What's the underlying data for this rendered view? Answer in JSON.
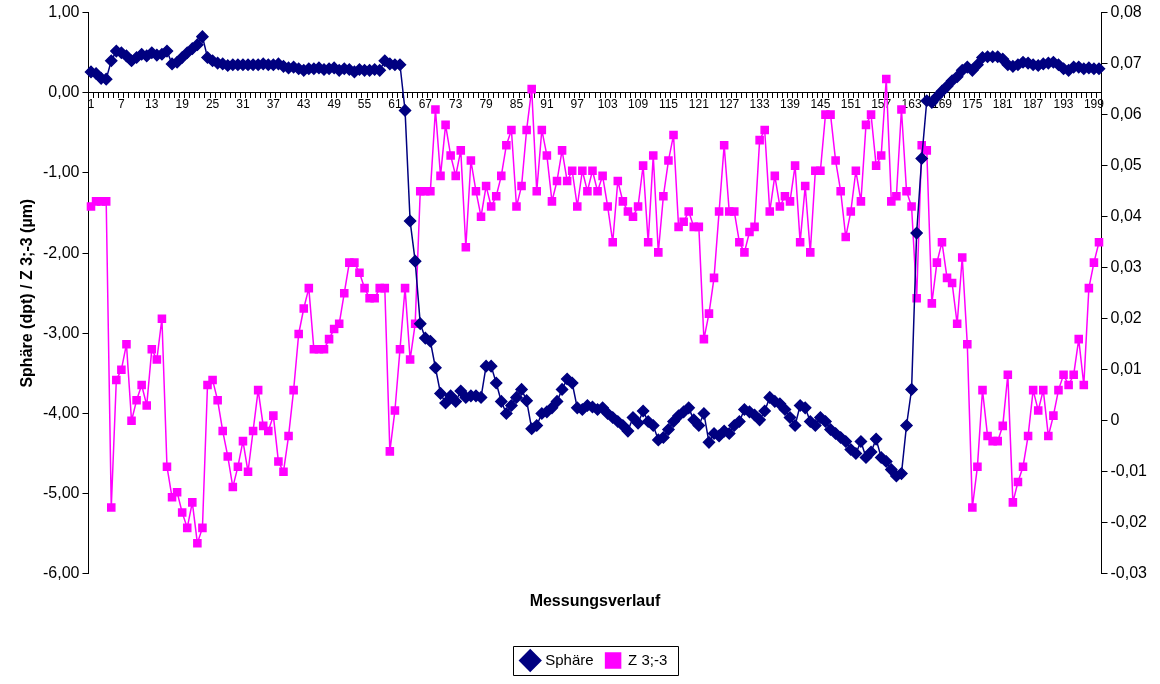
{
  "chart_data": {
    "type": "line",
    "xlabel": "Messungsverlauf",
    "ylabel": "Sphäre (dpt) / Z 3;-3 (µm)",
    "legend": "bottom",
    "grid": false,
    "categories": [
      "1",
      null,
      null,
      null,
      null,
      null,
      "7",
      null,
      null,
      null,
      null,
      null,
      "13",
      null,
      null,
      null,
      null,
      null,
      "19",
      null,
      null,
      null,
      null,
      null,
      "25",
      null,
      null,
      null,
      null,
      null,
      "31",
      null,
      null,
      null,
      null,
      null,
      "37",
      null,
      null,
      null,
      null,
      null,
      "43",
      null,
      null,
      null,
      null,
      null,
      "49",
      null,
      null,
      null,
      null,
      null,
      "55",
      null,
      null,
      null,
      null,
      null,
      "61",
      null,
      null,
      null,
      null,
      null,
      "67",
      null,
      null,
      null,
      null,
      null,
      "73",
      null,
      null,
      null,
      null,
      null,
      "79",
      null,
      null,
      null,
      null,
      null,
      "85",
      null,
      null,
      null,
      null,
      null,
      "91",
      null,
      null,
      null,
      null,
      null,
      "97",
      null,
      null,
      null,
      null,
      null,
      "103",
      null,
      null,
      null,
      null,
      null,
      "109",
      null,
      null,
      null,
      null,
      null,
      "115",
      null,
      null,
      null,
      null,
      null,
      "121",
      null,
      null,
      null,
      null,
      null,
      "127",
      null,
      null,
      null,
      null,
      null,
      "133",
      null,
      null,
      null,
      null,
      null,
      "139",
      null,
      null,
      null,
      null,
      null,
      "145",
      null,
      null,
      null,
      null,
      null,
      "151",
      null,
      null,
      null,
      null,
      null,
      "157",
      null,
      null,
      null,
      null,
      null,
      "163",
      null,
      null,
      null,
      null,
      null,
      "169",
      null,
      null,
      null,
      null,
      null,
      "175",
      null,
      null,
      null,
      null,
      null,
      "181",
      null,
      null,
      null,
      null,
      null,
      "187",
      null,
      null,
      null,
      null,
      null,
      "193",
      null,
      null,
      null,
      null,
      null,
      "199",
      null
    ],
    "ylim": [
      -6,
      1
    ],
    "yticks": [
      {
        "value": -6,
        "label": "-6,00"
      },
      {
        "value": -5,
        "label": "-5,00"
      },
      {
        "value": -4,
        "label": "-4,00"
      },
      {
        "value": -3,
        "label": "-3,00"
      },
      {
        "value": -2,
        "label": "-2,00"
      },
      {
        "value": -1,
        "label": "-1,00"
      },
      {
        "value": 0,
        "label": "0,00"
      },
      {
        "value": 1,
        "label": "1,00"
      }
    ],
    "y2lim": [
      -0.03,
      0.08
    ],
    "y2ticks": [
      {
        "value": -0.03,
        "label": "-0,03"
      },
      {
        "value": -0.02,
        "label": "-0,02"
      },
      {
        "value": -0.01,
        "label": "-0,01"
      },
      0,
      {
        "value": 0.01,
        "label": "0,01"
      },
      {
        "value": 0.02,
        "label": "0,02"
      },
      {
        "value": 0.03,
        "label": "0,03"
      },
      {
        "value": 0.04,
        "label": "0,04"
      },
      {
        "value": 0.05,
        "label": "0,05"
      },
      {
        "value": 0.06,
        "label": "0,06"
      },
      {
        "value": 0.07,
        "label": "0,07"
      },
      {
        "value": 0.08,
        "label": "0,08"
      }
    ],
    "series": [
      {
        "name": "Sphäre",
        "color": "#000080",
        "marker": "diamond",
        "values": [
          0.26,
          0.24,
          0.18,
          0.17,
          0.4,
          0.52,
          0.5,
          0.46,
          0.4,
          0.44,
          0.48,
          0.46,
          0.5,
          0.47,
          0.48,
          0.52,
          0.36,
          0.38,
          0.44,
          0.5,
          0.55,
          0.6,
          0.7,
          0.44,
          0.4,
          0.37,
          0.36,
          0.34,
          0.35,
          0.35,
          0.35,
          0.35,
          0.35,
          0.35,
          0.36,
          0.35,
          0.35,
          0.36,
          0.33,
          0.31,
          0.32,
          0.3,
          0.28,
          0.3,
          0.3,
          0.31,
          0.29,
          0.3,
          0.31,
          0.28,
          0.3,
          0.29,
          0.26,
          0.29,
          0.28,
          0.28,
          0.29,
          0.28,
          0.4,
          0.36,
          0.35,
          0.35,
          -0.22,
          -1.6,
          -2.1,
          -2.88,
          -3.06,
          -3.1,
          -3.43,
          -3.75,
          -3.87,
          -3.78,
          -3.85,
          -3.72,
          -3.8,
          -3.78,
          -3.78,
          -3.8,
          -3.41,
          -3.41,
          -3.62,
          -3.85,
          -4.0,
          -3.9,
          -3.8,
          -3.7,
          -3.84,
          -4.19,
          -4.15,
          -4.0,
          -3.98,
          -3.93,
          -3.85,
          -3.7,
          -3.57,
          -3.62,
          -3.93,
          -3.95,
          -3.9,
          -3.92,
          -3.95,
          -3.93,
          -4.0,
          -4.05,
          -4.1,
          -4.15,
          -4.22,
          -4.05,
          -4.12,
          -3.97,
          -4.1,
          -4.15,
          -4.33,
          -4.3,
          -4.2,
          -4.1,
          -4.03,
          -3.98,
          -3.93,
          -4.08,
          -4.15,
          -4.0,
          -4.36,
          -4.25,
          -4.28,
          -4.22,
          -4.25,
          -4.15,
          -4.1,
          -3.95,
          -3.98,
          -4.02,
          -4.08,
          -3.97,
          -3.8,
          -3.85,
          -3.88,
          -3.95,
          -4.05,
          -4.15,
          -3.9,
          -3.93,
          -4.1,
          -4.15,
          -4.05,
          -4.1,
          -4.2,
          -4.25,
          -4.3,
          -4.35,
          -4.45,
          -4.5,
          -4.35,
          -4.55,
          -4.48,
          -4.32,
          -4.55,
          -4.6,
          -4.7,
          -4.78,
          -4.75,
          -4.15,
          -3.7,
          -1.75,
          -0.82,
          -0.1,
          -0.12,
          -0.05,
          0.02,
          0.08,
          0.15,
          0.2,
          0.28,
          0.32,
          0.28,
          0.35,
          0.44,
          0.45,
          0.45,
          0.45,
          0.42,
          0.35,
          0.33,
          0.35,
          0.38,
          0.37,
          0.35,
          0.34,
          0.36,
          0.37,
          0.38,
          0.35,
          0.3,
          0.28,
          0.32,
          0.32,
          0.3,
          0.31,
          0.3,
          0.3
        ]
      },
      {
        "name": "Z 3;-3",
        "color": "#ff00ff",
        "marker": "square",
        "axis": "y2",
        "values": [
          0.042,
          0.043,
          0.043,
          0.043,
          -0.017,
          0.008,
          0.01,
          0.015,
          0.0,
          0.004,
          0.007,
          0.003,
          0.014,
          0.012,
          0.02,
          -0.009,
          -0.015,
          -0.014,
          -0.018,
          -0.021,
          -0.016,
          -0.024,
          -0.021,
          0.007,
          0.008,
          0.004,
          -0.002,
          -0.007,
          -0.013,
          -0.009,
          -0.004,
          -0.01,
          -0.002,
          0.006,
          -0.001,
          -0.002,
          0.001,
          -0.008,
          -0.01,
          -0.003,
          0.006,
          0.017,
          0.022,
          0.026,
          0.014,
          0.014,
          0.014,
          0.016,
          0.018,
          0.019,
          0.025,
          0.031,
          0.031,
          0.029,
          0.026,
          0.024,
          0.024,
          0.026,
          0.026,
          -0.006,
          0.002,
          0.014,
          0.026,
          0.012,
          0.019,
          0.045,
          0.045,
          0.045,
          0.061,
          0.048,
          0.058,
          0.052,
          0.048,
          0.053,
          0.034,
          0.051,
          0.045,
          0.04,
          0.046,
          0.042,
          0.044,
          0.048,
          0.054,
          0.057,
          0.042,
          0.046,
          0.057,
          0.065,
          0.045,
          0.057,
          0.052,
          0.043,
          0.047,
          0.053,
          0.047,
          0.049,
          0.042,
          0.049,
          0.045,
          0.049,
          0.045,
          0.048,
          0.042,
          0.035,
          0.047,
          0.043,
          0.041,
          0.04,
          0.042,
          0.05,
          0.035,
          0.052,
          0.033,
          0.044,
          0.051,
          0.056,
          0.038,
          0.039,
          0.041,
          0.038,
          0.038,
          0.016,
          0.021,
          0.028,
          0.041,
          0.054,
          0.041,
          0.041,
          0.035,
          0.033,
          0.037,
          0.038,
          0.055,
          0.057,
          0.041,
          0.048,
          0.042,
          0.044,
          0.043,
          0.05,
          0.035,
          0.046,
          0.033,
          0.049,
          0.049,
          0.06,
          0.06,
          0.051,
          0.045,
          0.036,
          0.041,
          0.049,
          0.043,
          0.058,
          0.06,
          0.05,
          0.052,
          0.067,
          0.043,
          0.044,
          0.061,
          0.045,
          0.042,
          0.024,
          0.054,
          0.053,
          0.023,
          0.031,
          0.035,
          0.028,
          0.027,
          0.019,
          0.032,
          0.015,
          -0.017,
          -0.009,
          0.006,
          -0.003,
          -0.004,
          -0.004,
          -0.001,
          0.009,
          -0.016,
          -0.012,
          -0.009,
          -0.003,
          0.006,
          0.002,
          0.006,
          -0.003,
          0.001,
          0.006,
          0.009,
          0.007,
          0.009,
          0.016,
          0.007,
          0.026,
          0.031,
          0.035
        ]
      }
    ]
  }
}
